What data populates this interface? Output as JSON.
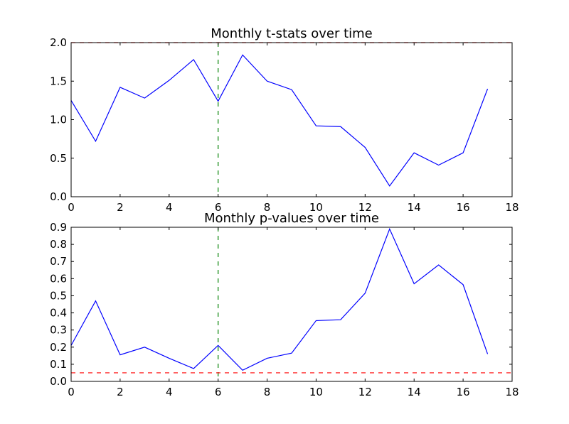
{
  "chart_data": [
    {
      "type": "line",
      "title": "Monthly t-stats over time",
      "xlabel": "",
      "ylabel": "",
      "xlim": [
        0,
        18
      ],
      "ylim": [
        0,
        2.0
      ],
      "xticks": [
        "0",
        "2",
        "4",
        "6",
        "8",
        "10",
        "12",
        "14",
        "16",
        "18"
      ],
      "yticks": [
        "0.0",
        "0.5",
        "1.0",
        "1.5",
        "2.0"
      ],
      "grid": false,
      "series": [
        {
          "color": "#0000ff",
          "x": [
            0,
            1,
            2,
            3,
            4,
            5,
            6,
            7,
            8,
            9,
            10,
            11,
            12,
            13,
            14,
            15,
            16,
            17
          ],
          "values": [
            1.25,
            0.72,
            1.42,
            1.28,
            1.51,
            1.78,
            1.24,
            1.84,
            1.5,
            1.39,
            0.92,
            0.91,
            0.64,
            0.14,
            0.57,
            0.41,
            0.57,
            1.4
          ]
        }
      ],
      "reference_lines": [
        {
          "orientation": "vertical",
          "value": 6,
          "color": "#008000",
          "style": "dashed"
        },
        {
          "orientation": "horizontal",
          "value": 2.0,
          "color": "#ff0000",
          "style": "dashed"
        }
      ]
    },
    {
      "type": "line",
      "title": "Monthly p-values over time",
      "xlabel": "",
      "ylabel": "",
      "xlim": [
        0,
        18
      ],
      "ylim": [
        0,
        0.9
      ],
      "xticks": [
        "0",
        "2",
        "4",
        "6",
        "8",
        "10",
        "12",
        "14",
        "16",
        "18"
      ],
      "yticks": [
        "0.0",
        "0.1",
        "0.2",
        "0.3",
        "0.4",
        "0.5",
        "0.6",
        "0.7",
        "0.8",
        "0.9"
      ],
      "grid": false,
      "series": [
        {
          "color": "#0000ff",
          "x": [
            0,
            1,
            2,
            3,
            4,
            5,
            6,
            7,
            8,
            9,
            10,
            11,
            12,
            13,
            14,
            15,
            16,
            17
          ],
          "values": [
            0.21,
            0.47,
            0.155,
            0.2,
            0.135,
            0.075,
            0.21,
            0.065,
            0.135,
            0.165,
            0.355,
            0.36,
            0.515,
            0.89,
            0.57,
            0.68,
            0.565,
            0.16
          ]
        }
      ],
      "reference_lines": [
        {
          "orientation": "vertical",
          "value": 6,
          "color": "#008000",
          "style": "dashed"
        },
        {
          "orientation": "horizontal",
          "value": 0.05,
          "color": "#ff0000",
          "style": "dashed"
        }
      ]
    }
  ]
}
